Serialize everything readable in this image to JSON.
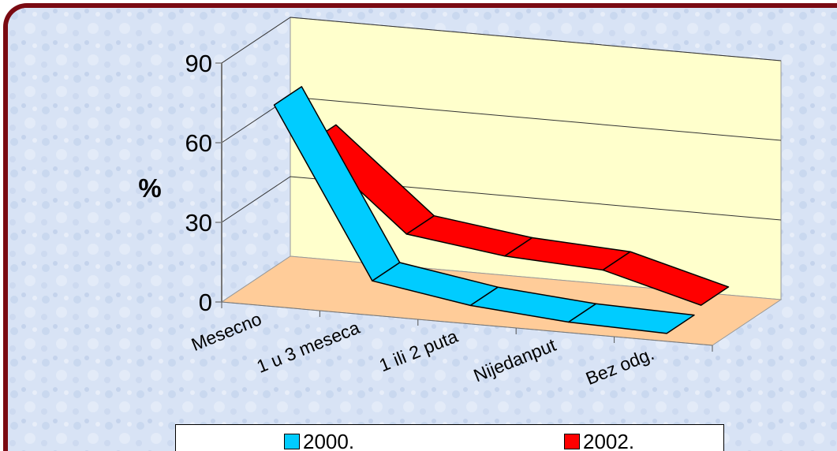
{
  "chart_data": {
    "type": "line",
    "style": "3d-ribbon",
    "title": "",
    "xlabel": "",
    "ylabel": "%",
    "ylim": [
      0,
      90
    ],
    "yticks": [
      "0",
      "30",
      "60",
      "90"
    ],
    "categories": [
      "Mesecno",
      "1 u 3 meseca",
      "1 ili 2 puta",
      "Nijedanput",
      "Bez odg."
    ],
    "series": [
      {
        "name": "2000.",
        "values": [
          75,
          12,
          6,
          3,
          2
        ],
        "color": "#00ccff"
      },
      {
        "name": "2002.",
        "values": [
          52,
          21,
          16,
          14,
          4
        ],
        "color": "#ff0000"
      }
    ],
    "grid": true,
    "legend_position": "bottom",
    "colors": {
      "back_wall": "#ffffcc",
      "floor": "#ffcc99",
      "frame_border": "#7a0a12"
    }
  }
}
